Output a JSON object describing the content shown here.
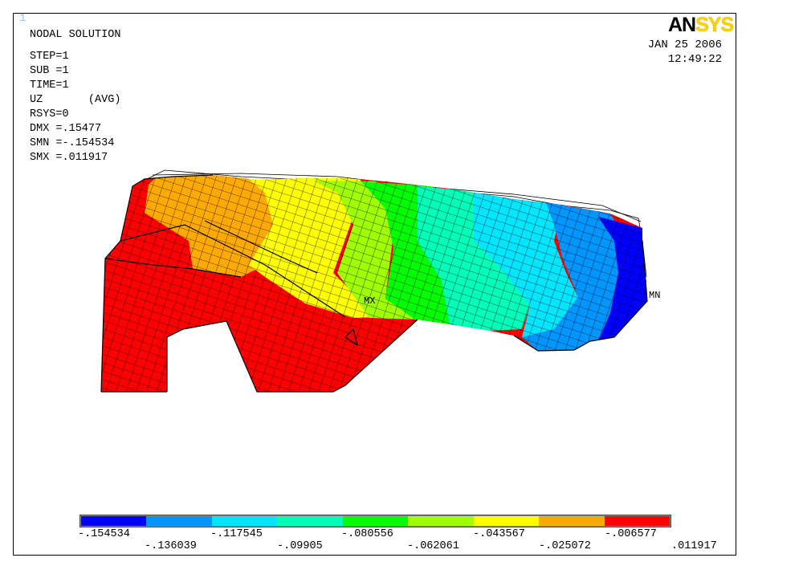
{
  "window_number": "1",
  "title": "NODAL SOLUTION",
  "params": [
    "STEP=1",
    "SUB =1",
    "TIME=1",
    "UZ       (AVG)",
    "RSYS=0",
    "DMX =.15477",
    "SMN =-.154534",
    "SMX =.011917"
  ],
  "logo": {
    "part1": "AN",
    "part2": "SYS"
  },
  "date": "JAN 25 2006",
  "time": "12:49:22",
  "markers": {
    "max": "MX",
    "min": "MN"
  },
  "legend": {
    "colors": [
      "#0000ff",
      "#0096ff",
      "#00e6ff",
      "#00ffb9",
      "#00ff00",
      "#a0ff00",
      "#ffff00",
      "#ffaa00",
      "#ff0000"
    ],
    "labels_top": [
      "-.154534",
      "-.117545",
      "-.080556",
      "-.043567",
      "-.006577"
    ],
    "labels_bottom": [
      "-.136039",
      "-.09905",
      "-.062061",
      "-.025072",
      ".011917"
    ]
  }
}
